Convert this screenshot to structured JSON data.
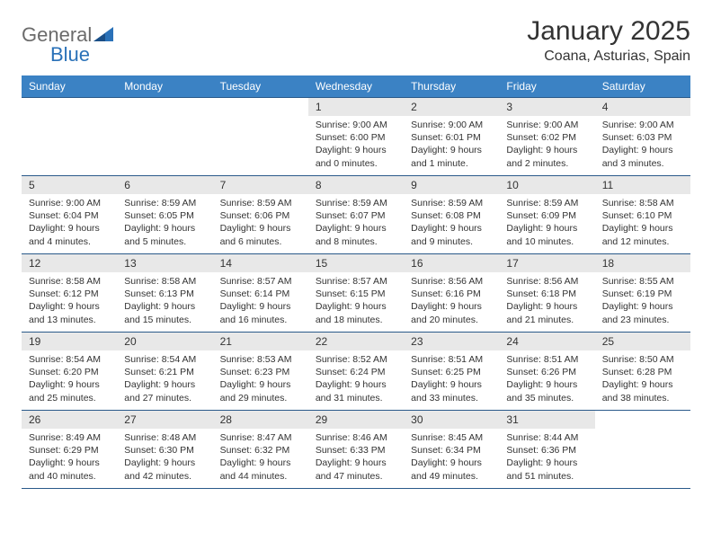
{
  "logo": {
    "word1": "General",
    "word2": "Blue"
  },
  "header": {
    "title": "January 2025",
    "location": "Coana, Asturias, Spain"
  },
  "colors": {
    "header_bg": "#3b82c4",
    "header_text": "#ffffff",
    "daynum_bg": "#e8e8e8",
    "border": "#2a5a8a",
    "logo_gray": "#6b6b6b",
    "logo_blue": "#2a71b8",
    "text": "#333333",
    "background": "#ffffff"
  },
  "weekdays": [
    "Sunday",
    "Monday",
    "Tuesday",
    "Wednesday",
    "Thursday",
    "Friday",
    "Saturday"
  ],
  "weeks": [
    [
      {
        "num": "",
        "sunrise": "",
        "sunset": "",
        "daylight1": "",
        "daylight2": ""
      },
      {
        "num": "",
        "sunrise": "",
        "sunset": "",
        "daylight1": "",
        "daylight2": ""
      },
      {
        "num": "",
        "sunrise": "",
        "sunset": "",
        "daylight1": "",
        "daylight2": ""
      },
      {
        "num": "1",
        "sunrise": "Sunrise: 9:00 AM",
        "sunset": "Sunset: 6:00 PM",
        "daylight1": "Daylight: 9 hours",
        "daylight2": "and 0 minutes."
      },
      {
        "num": "2",
        "sunrise": "Sunrise: 9:00 AM",
        "sunset": "Sunset: 6:01 PM",
        "daylight1": "Daylight: 9 hours",
        "daylight2": "and 1 minute."
      },
      {
        "num": "3",
        "sunrise": "Sunrise: 9:00 AM",
        "sunset": "Sunset: 6:02 PM",
        "daylight1": "Daylight: 9 hours",
        "daylight2": "and 2 minutes."
      },
      {
        "num": "4",
        "sunrise": "Sunrise: 9:00 AM",
        "sunset": "Sunset: 6:03 PM",
        "daylight1": "Daylight: 9 hours",
        "daylight2": "and 3 minutes."
      }
    ],
    [
      {
        "num": "5",
        "sunrise": "Sunrise: 9:00 AM",
        "sunset": "Sunset: 6:04 PM",
        "daylight1": "Daylight: 9 hours",
        "daylight2": "and 4 minutes."
      },
      {
        "num": "6",
        "sunrise": "Sunrise: 8:59 AM",
        "sunset": "Sunset: 6:05 PM",
        "daylight1": "Daylight: 9 hours",
        "daylight2": "and 5 minutes."
      },
      {
        "num": "7",
        "sunrise": "Sunrise: 8:59 AM",
        "sunset": "Sunset: 6:06 PM",
        "daylight1": "Daylight: 9 hours",
        "daylight2": "and 6 minutes."
      },
      {
        "num": "8",
        "sunrise": "Sunrise: 8:59 AM",
        "sunset": "Sunset: 6:07 PM",
        "daylight1": "Daylight: 9 hours",
        "daylight2": "and 8 minutes."
      },
      {
        "num": "9",
        "sunrise": "Sunrise: 8:59 AM",
        "sunset": "Sunset: 6:08 PM",
        "daylight1": "Daylight: 9 hours",
        "daylight2": "and 9 minutes."
      },
      {
        "num": "10",
        "sunrise": "Sunrise: 8:59 AM",
        "sunset": "Sunset: 6:09 PM",
        "daylight1": "Daylight: 9 hours",
        "daylight2": "and 10 minutes."
      },
      {
        "num": "11",
        "sunrise": "Sunrise: 8:58 AM",
        "sunset": "Sunset: 6:10 PM",
        "daylight1": "Daylight: 9 hours",
        "daylight2": "and 12 minutes."
      }
    ],
    [
      {
        "num": "12",
        "sunrise": "Sunrise: 8:58 AM",
        "sunset": "Sunset: 6:12 PM",
        "daylight1": "Daylight: 9 hours",
        "daylight2": "and 13 minutes."
      },
      {
        "num": "13",
        "sunrise": "Sunrise: 8:58 AM",
        "sunset": "Sunset: 6:13 PM",
        "daylight1": "Daylight: 9 hours",
        "daylight2": "and 15 minutes."
      },
      {
        "num": "14",
        "sunrise": "Sunrise: 8:57 AM",
        "sunset": "Sunset: 6:14 PM",
        "daylight1": "Daylight: 9 hours",
        "daylight2": "and 16 minutes."
      },
      {
        "num": "15",
        "sunrise": "Sunrise: 8:57 AM",
        "sunset": "Sunset: 6:15 PM",
        "daylight1": "Daylight: 9 hours",
        "daylight2": "and 18 minutes."
      },
      {
        "num": "16",
        "sunrise": "Sunrise: 8:56 AM",
        "sunset": "Sunset: 6:16 PM",
        "daylight1": "Daylight: 9 hours",
        "daylight2": "and 20 minutes."
      },
      {
        "num": "17",
        "sunrise": "Sunrise: 8:56 AM",
        "sunset": "Sunset: 6:18 PM",
        "daylight1": "Daylight: 9 hours",
        "daylight2": "and 21 minutes."
      },
      {
        "num": "18",
        "sunrise": "Sunrise: 8:55 AM",
        "sunset": "Sunset: 6:19 PM",
        "daylight1": "Daylight: 9 hours",
        "daylight2": "and 23 minutes."
      }
    ],
    [
      {
        "num": "19",
        "sunrise": "Sunrise: 8:54 AM",
        "sunset": "Sunset: 6:20 PM",
        "daylight1": "Daylight: 9 hours",
        "daylight2": "and 25 minutes."
      },
      {
        "num": "20",
        "sunrise": "Sunrise: 8:54 AM",
        "sunset": "Sunset: 6:21 PM",
        "daylight1": "Daylight: 9 hours",
        "daylight2": "and 27 minutes."
      },
      {
        "num": "21",
        "sunrise": "Sunrise: 8:53 AM",
        "sunset": "Sunset: 6:23 PM",
        "daylight1": "Daylight: 9 hours",
        "daylight2": "and 29 minutes."
      },
      {
        "num": "22",
        "sunrise": "Sunrise: 8:52 AM",
        "sunset": "Sunset: 6:24 PM",
        "daylight1": "Daylight: 9 hours",
        "daylight2": "and 31 minutes."
      },
      {
        "num": "23",
        "sunrise": "Sunrise: 8:51 AM",
        "sunset": "Sunset: 6:25 PM",
        "daylight1": "Daylight: 9 hours",
        "daylight2": "and 33 minutes."
      },
      {
        "num": "24",
        "sunrise": "Sunrise: 8:51 AM",
        "sunset": "Sunset: 6:26 PM",
        "daylight1": "Daylight: 9 hours",
        "daylight2": "and 35 minutes."
      },
      {
        "num": "25",
        "sunrise": "Sunrise: 8:50 AM",
        "sunset": "Sunset: 6:28 PM",
        "daylight1": "Daylight: 9 hours",
        "daylight2": "and 38 minutes."
      }
    ],
    [
      {
        "num": "26",
        "sunrise": "Sunrise: 8:49 AM",
        "sunset": "Sunset: 6:29 PM",
        "daylight1": "Daylight: 9 hours",
        "daylight2": "and 40 minutes."
      },
      {
        "num": "27",
        "sunrise": "Sunrise: 8:48 AM",
        "sunset": "Sunset: 6:30 PM",
        "daylight1": "Daylight: 9 hours",
        "daylight2": "and 42 minutes."
      },
      {
        "num": "28",
        "sunrise": "Sunrise: 8:47 AM",
        "sunset": "Sunset: 6:32 PM",
        "daylight1": "Daylight: 9 hours",
        "daylight2": "and 44 minutes."
      },
      {
        "num": "29",
        "sunrise": "Sunrise: 8:46 AM",
        "sunset": "Sunset: 6:33 PM",
        "daylight1": "Daylight: 9 hours",
        "daylight2": "and 47 minutes."
      },
      {
        "num": "30",
        "sunrise": "Sunrise: 8:45 AM",
        "sunset": "Sunset: 6:34 PM",
        "daylight1": "Daylight: 9 hours",
        "daylight2": "and 49 minutes."
      },
      {
        "num": "31",
        "sunrise": "Sunrise: 8:44 AM",
        "sunset": "Sunset: 6:36 PM",
        "daylight1": "Daylight: 9 hours",
        "daylight2": "and 51 minutes."
      },
      {
        "num": "",
        "sunrise": "",
        "sunset": "",
        "daylight1": "",
        "daylight2": ""
      }
    ]
  ]
}
